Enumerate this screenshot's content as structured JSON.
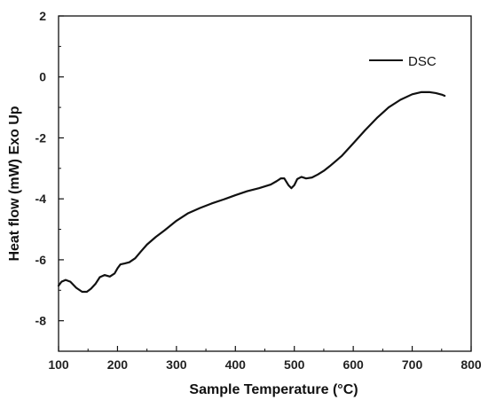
{
  "chart_data": {
    "type": "line",
    "xlabel": "Sample Temperature (°C)",
    "ylabel": "Heat flow (mW) Exo Up",
    "xlim": [
      100,
      800
    ],
    "ylim": [
      -9,
      2
    ],
    "x_ticks": [
      100,
      200,
      300,
      400,
      500,
      600,
      700,
      800
    ],
    "y_ticks": [
      2,
      0,
      -2,
      -4,
      -6,
      -8
    ],
    "grid": false,
    "legend_position": "top-right",
    "series": [
      {
        "name": "DSC",
        "color": "#111111",
        "points": [
          [
            100,
            -6.85
          ],
          [
            105,
            -6.72
          ],
          [
            112,
            -6.66
          ],
          [
            120,
            -6.72
          ],
          [
            130,
            -6.92
          ],
          [
            140,
            -7.05
          ],
          [
            148,
            -7.05
          ],
          [
            155,
            -6.95
          ],
          [
            163,
            -6.78
          ],
          [
            170,
            -6.57
          ],
          [
            178,
            -6.5
          ],
          [
            187,
            -6.55
          ],
          [
            195,
            -6.45
          ],
          [
            200,
            -6.28
          ],
          [
            205,
            -6.15
          ],
          [
            212,
            -6.12
          ],
          [
            220,
            -6.08
          ],
          [
            230,
            -5.95
          ],
          [
            240,
            -5.72
          ],
          [
            250,
            -5.5
          ],
          [
            265,
            -5.25
          ],
          [
            280,
            -5.03
          ],
          [
            300,
            -4.72
          ],
          [
            320,
            -4.47
          ],
          [
            340,
            -4.3
          ],
          [
            360,
            -4.15
          ],
          [
            380,
            -4.02
          ],
          [
            400,
            -3.88
          ],
          [
            420,
            -3.75
          ],
          [
            440,
            -3.65
          ],
          [
            460,
            -3.53
          ],
          [
            470,
            -3.42
          ],
          [
            477,
            -3.33
          ],
          [
            483,
            -3.33
          ],
          [
            490,
            -3.55
          ],
          [
            495,
            -3.65
          ],
          [
            500,
            -3.55
          ],
          [
            505,
            -3.35
          ],
          [
            512,
            -3.28
          ],
          [
            520,
            -3.33
          ],
          [
            530,
            -3.3
          ],
          [
            540,
            -3.2
          ],
          [
            550,
            -3.08
          ],
          [
            560,
            -2.93
          ],
          [
            580,
            -2.6
          ],
          [
            600,
            -2.18
          ],
          [
            620,
            -1.75
          ],
          [
            640,
            -1.35
          ],
          [
            660,
            -1.0
          ],
          [
            680,
            -0.75
          ],
          [
            700,
            -0.57
          ],
          [
            715,
            -0.5
          ],
          [
            730,
            -0.5
          ],
          [
            740,
            -0.53
          ],
          [
            750,
            -0.58
          ],
          [
            755,
            -0.62
          ]
        ]
      }
    ]
  }
}
